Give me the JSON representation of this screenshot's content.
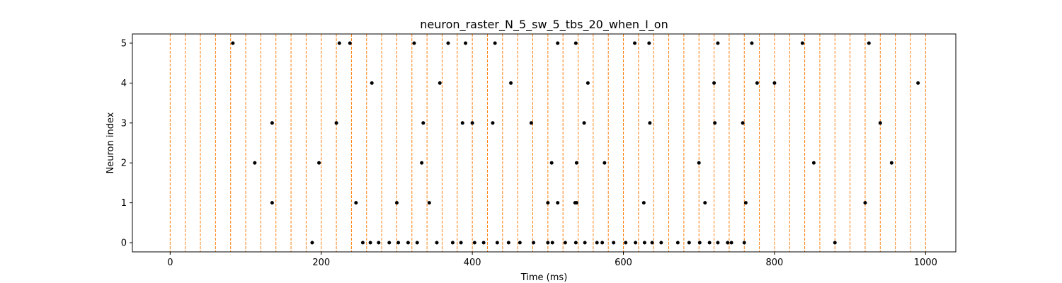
{
  "chart_data": {
    "type": "scatter",
    "title": "neuron_raster_N_5_sw_5_tbs_20_when_I_on",
    "xlabel": "Time (ms)",
    "ylabel": "Neuron index",
    "xlim": [
      -50,
      1040
    ],
    "ylim": [
      -0.23,
      5.23
    ],
    "xticks": [
      0,
      200,
      400,
      600,
      800,
      1000
    ],
    "yticks": [
      0,
      1,
      2,
      3,
      4,
      5
    ],
    "grid": false,
    "colors": {
      "spikes": "#000000",
      "markers": "#ff7f0e",
      "axes": "#000000"
    },
    "vertical_markers": [
      0,
      20,
      40,
      60,
      80,
      100,
      120,
      140,
      160,
      180,
      200,
      220,
      240,
      260,
      280,
      300,
      320,
      340,
      360,
      380,
      400,
      420,
      440,
      460,
      480,
      500,
      520,
      540,
      560,
      580,
      600,
      620,
      640,
      660,
      680,
      700,
      720,
      740,
      760,
      780,
      800,
      820,
      840,
      860,
      880,
      900,
      920,
      940,
      960,
      980,
      1000
    ],
    "series": [
      {
        "neuron": 0,
        "x": [
          188,
          255,
          265,
          276,
          290,
          302,
          315,
          327,
          353,
          374,
          385,
          403,
          415,
          433,
          448,
          463,
          481,
          500,
          506,
          523,
          537,
          549,
          565,
          572,
          587,
          603,
          616,
          628,
          638,
          650,
          672,
          687,
          701,
          714,
          725,
          738,
          743,
          760,
          880
        ]
      },
      {
        "neuron": 1,
        "x": [
          135,
          246,
          300,
          343,
          500,
          513,
          536,
          538,
          627,
          708,
          762,
          920
        ]
      },
      {
        "neuron": 2,
        "x": [
          112,
          197,
          333,
          505,
          538,
          575,
          700,
          852,
          955
        ]
      },
      {
        "neuron": 3,
        "x": [
          135,
          220,
          335,
          387,
          400,
          427,
          478,
          548,
          635,
          721,
          758,
          940
        ]
      },
      {
        "neuron": 4,
        "x": [
          267,
          357,
          451,
          553,
          720,
          777,
          800,
          990
        ]
      },
      {
        "neuron": 5,
        "x": [
          83,
          224,
          238,
          323,
          368,
          391,
          430,
          513,
          537,
          615,
          634,
          725,
          770,
          837,
          925
        ]
      }
    ]
  }
}
